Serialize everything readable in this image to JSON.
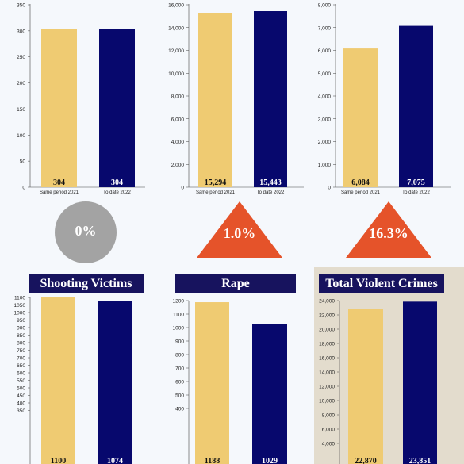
{
  "colors": {
    "y2021": "#efcb72",
    "y2022": "#07086d",
    "navy": "#17135e",
    "grey": "#a3a3a3",
    "orange": "#e5532a",
    "beige": "#e3dccd"
  },
  "chart_data": [
    {
      "type": "bar",
      "title": "",
      "categories": [
        "Same period 2021",
        "To date 2022"
      ],
      "values": [
        304,
        304
      ],
      "value_labels": [
        "304",
        "304"
      ],
      "ylim": [
        0,
        350
      ],
      "ticks": [
        0,
        50,
        100,
        150,
        200,
        250,
        300,
        350
      ],
      "tick_labels": [
        "0",
        "50",
        "100",
        "150",
        "200",
        "250",
        "300",
        "350"
      ],
      "show_categories": true
    },
    {
      "type": "bar",
      "title": "",
      "categories": [
        "Same period 2021",
        "To date 2022"
      ],
      "values": [
        15294,
        15443
      ],
      "value_labels": [
        "15,294",
        "15,443"
      ],
      "ylim": [
        0,
        16000
      ],
      "ticks": [
        0,
        2000,
        4000,
        6000,
        8000,
        10000,
        12000,
        14000,
        16000
      ],
      "tick_labels": [
        "0",
        "2,000",
        "4,000",
        "6,000",
        "8,000",
        "10,000",
        "12,000",
        "14,000",
        "16,000"
      ],
      "show_categories": true
    },
    {
      "type": "bar",
      "title": "",
      "categories": [
        "Same period 2021",
        "To date 2022"
      ],
      "values": [
        6084,
        7075
      ],
      "value_labels": [
        "6,084",
        "7,075"
      ],
      "ylim": [
        0,
        8000
      ],
      "ticks": [
        0,
        1000,
        2000,
        3000,
        4000,
        5000,
        6000,
        7000,
        8000
      ],
      "tick_labels": [
        "0",
        "1,000",
        "2,000",
        "3,000",
        "4,000",
        "5,000",
        "6,000",
        "7,000",
        "8,000"
      ],
      "show_categories": true
    },
    {
      "type": "bar",
      "title": "Shooting Victims",
      "categories": [
        "Same period 2021",
        "To date 2022"
      ],
      "values": [
        1100,
        1074
      ],
      "value_labels": [
        "1100",
        "1074"
      ],
      "ylim": [
        0,
        1100
      ],
      "ticks": [
        350,
        400,
        450,
        500,
        550,
        600,
        650,
        700,
        750,
        800,
        850,
        900,
        950,
        1000,
        1050,
        1100
      ],
      "tick_labels": [
        "350",
        "400",
        "450",
        "500",
        "550",
        "600",
        "650",
        "700",
        "750",
        "800",
        "850",
        "900",
        "950",
        "1000",
        "1050",
        "1100"
      ],
      "show_categories": false
    },
    {
      "type": "bar",
      "title": "Rape",
      "categories": [
        "Same period 2021",
        "To date 2022"
      ],
      "values": [
        1188,
        1029
      ],
      "value_labels": [
        "1188",
        "1029"
      ],
      "ylim": [
        0,
        1200
      ],
      "ticks": [
        400,
        500,
        600,
        700,
        800,
        900,
        1000,
        1100,
        1200
      ],
      "tick_labels": [
        "400",
        "500",
        "600",
        "700",
        "800",
        "900",
        "1000",
        "1100",
        "1200"
      ],
      "show_categories": false
    },
    {
      "type": "bar",
      "title": "Total Violent Crimes",
      "categories": [
        "Same period 2021",
        "To date 2022"
      ],
      "values": [
        22870,
        23851
      ],
      "value_labels": [
        "22,870",
        "23,851"
      ],
      "ylim": [
        0,
        24000
      ],
      "ticks": [
        4000,
        6000,
        8000,
        10000,
        12000,
        14000,
        16000,
        18000,
        20000,
        22000,
        24000
      ],
      "tick_labels": [
        "4,000",
        "6,000",
        "8,000",
        "10,000",
        "12,000",
        "14,000",
        "16,000",
        "18,000",
        "20,000",
        "22,000",
        "24,000"
      ],
      "show_categories": false
    }
  ],
  "badges": [
    {
      "label": "0%",
      "shape": "circle",
      "color": "grey"
    },
    {
      "label": "1.0%",
      "shape": "triangle-up",
      "color": "orange"
    },
    {
      "label": "16.3%",
      "shape": "triangle-up",
      "color": "orange"
    }
  ]
}
